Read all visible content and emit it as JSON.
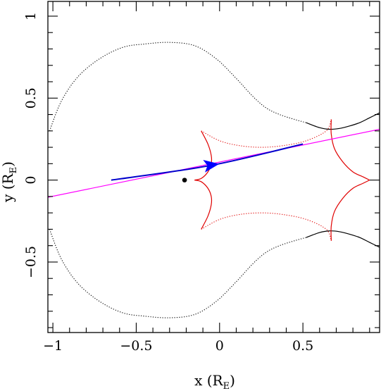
{
  "chart_data": {
    "type": "line",
    "title": "",
    "xlabel": "x (R_E)",
    "ylabel": "y (R_E)",
    "xlabel_main": "x (R",
    "xlabel_sub": "E",
    "xlabel_close": ")",
    "ylabel_main": "y (R",
    "ylabel_sub": "E",
    "ylabel_close": ")",
    "xlim": [
      -1.03,
      0.96
    ],
    "ylim": [
      -0.93,
      1.09
    ],
    "xticks": [
      -1,
      -0.5,
      0,
      0.5
    ],
    "xtick_labels": [
      "−1",
      "−0.5",
      "0",
      "0.5"
    ],
    "yticks": [
      -0.5,
      0,
      0.5,
      1
    ],
    "ytick_labels": [
      "−0.5",
      "0",
      "0.5",
      "1"
    ],
    "grid": false,
    "colors": {
      "critical_curve": "#000000",
      "caustic": "#e00000",
      "source_trajectory": "#ff00ff",
      "lens_trajectory": "#0000cc",
      "lens_arrow": "#0000ff",
      "lens_star": "#000000"
    },
    "series": [
      {
        "role": "critical-curve-outer",
        "style": "dotted",
        "points": [
          [
            -1.02,
            0.3
          ],
          [
            -0.95,
            0.48
          ],
          [
            -0.85,
            0.63
          ],
          [
            -0.72,
            0.74
          ],
          [
            -0.58,
            0.81
          ],
          [
            -0.45,
            0.83
          ],
          [
            -0.3,
            0.84
          ],
          [
            -0.15,
            0.82
          ],
          [
            -0.02,
            0.74
          ],
          [
            0.1,
            0.62
          ],
          [
            0.2,
            0.51
          ],
          [
            0.28,
            0.44
          ],
          [
            0.36,
            0.4
          ],
          [
            0.45,
            0.37
          ],
          [
            0.52,
            0.35
          ]
        ]
      },
      {
        "role": "critical-curve-right",
        "style": "solid",
        "points": [
          [
            0.52,
            0.35
          ],
          [
            0.6,
            0.32
          ],
          [
            0.66,
            0.31
          ],
          [
            0.72,
            0.315
          ],
          [
            0.78,
            0.33
          ],
          [
            0.84,
            0.35
          ],
          [
            0.9,
            0.38
          ],
          [
            0.96,
            0.41
          ]
        ]
      },
      {
        "role": "critical-curve-outer-lower",
        "style": "dotted",
        "points": [
          [
            -1.02,
            -0.3
          ],
          [
            -0.95,
            -0.48
          ],
          [
            -0.85,
            -0.63
          ],
          [
            -0.72,
            -0.74
          ],
          [
            -0.58,
            -0.81
          ],
          [
            -0.45,
            -0.83
          ],
          [
            -0.3,
            -0.84
          ],
          [
            -0.15,
            -0.82
          ],
          [
            -0.02,
            -0.74
          ],
          [
            0.1,
            -0.62
          ],
          [
            0.2,
            -0.51
          ],
          [
            0.28,
            -0.44
          ],
          [
            0.36,
            -0.4
          ],
          [
            0.45,
            -0.37
          ],
          [
            0.52,
            -0.35
          ]
        ]
      },
      {
        "role": "critical-curve-right-lower",
        "style": "solid",
        "points": [
          [
            0.52,
            -0.35
          ],
          [
            0.6,
            -0.32
          ],
          [
            0.66,
            -0.31
          ],
          [
            0.72,
            -0.315
          ],
          [
            0.78,
            -0.33
          ],
          [
            0.84,
            -0.35
          ],
          [
            0.9,
            -0.38
          ],
          [
            0.96,
            -0.41
          ]
        ]
      },
      {
        "role": "caustic-left-upper",
        "style": "solid",
        "points": [
          [
            -0.11,
            0.3
          ],
          [
            -0.07,
            0.22
          ],
          [
            -0.05,
            0.15
          ],
          [
            -0.05,
            0.1
          ],
          [
            -0.07,
            0.05
          ],
          [
            -0.11,
            0.01
          ],
          [
            -0.15,
            0.0
          ]
        ]
      },
      {
        "role": "caustic-left-lower",
        "style": "solid",
        "points": [
          [
            -0.11,
            -0.3
          ],
          [
            -0.07,
            -0.22
          ],
          [
            -0.05,
            -0.15
          ],
          [
            -0.05,
            -0.1
          ],
          [
            -0.07,
            -0.05
          ],
          [
            -0.11,
            -0.01
          ],
          [
            -0.15,
            0.0
          ]
        ]
      },
      {
        "role": "caustic-top",
        "style": "dotted",
        "points": [
          [
            -0.11,
            0.3
          ],
          [
            0.0,
            0.24
          ],
          [
            0.12,
            0.21
          ],
          [
            0.25,
            0.2
          ],
          [
            0.38,
            0.21
          ],
          [
            0.52,
            0.24
          ],
          [
            0.64,
            0.3
          ],
          [
            0.67,
            0.37
          ]
        ]
      },
      {
        "role": "caustic-bottom",
        "style": "dotted",
        "points": [
          [
            -0.11,
            -0.3
          ],
          [
            0.0,
            -0.24
          ],
          [
            0.12,
            -0.21
          ],
          [
            0.25,
            -0.2
          ],
          [
            0.38,
            -0.21
          ],
          [
            0.52,
            -0.24
          ],
          [
            0.64,
            -0.3
          ],
          [
            0.67,
            -0.37
          ]
        ]
      },
      {
        "role": "caustic-right-upper",
        "style": "solid",
        "points": [
          [
            0.67,
            0.37
          ],
          [
            0.67,
            0.28
          ],
          [
            0.69,
            0.19
          ],
          [
            0.74,
            0.11
          ],
          [
            0.8,
            0.05
          ],
          [
            0.86,
            0.02
          ],
          [
            0.9,
            0.0
          ]
        ]
      },
      {
        "role": "caustic-right-lower",
        "style": "solid",
        "points": [
          [
            0.67,
            -0.37
          ],
          [
            0.67,
            -0.28
          ],
          [
            0.69,
            -0.19
          ],
          [
            0.74,
            -0.11
          ],
          [
            0.8,
            -0.05
          ],
          [
            0.86,
            -0.02
          ],
          [
            0.9,
            0.0
          ]
        ]
      },
      {
        "role": "source-trajectory",
        "style": "solid",
        "points": [
          [
            -1.03,
            -0.105
          ],
          [
            0.96,
            0.31
          ]
        ]
      },
      {
        "role": "lens-trajectory",
        "style": "solid",
        "points": [
          [
            -0.65,
            0.0
          ],
          [
            -0.05,
            0.09
          ],
          [
            0.5,
            0.22
          ]
        ]
      }
    ],
    "arrow": {
      "at": [
        -0.06,
        0.09
      ],
      "direction": [
        1,
        0.15
      ]
    },
    "lens_star": {
      "x": -0.21,
      "y": 0.0
    }
  }
}
